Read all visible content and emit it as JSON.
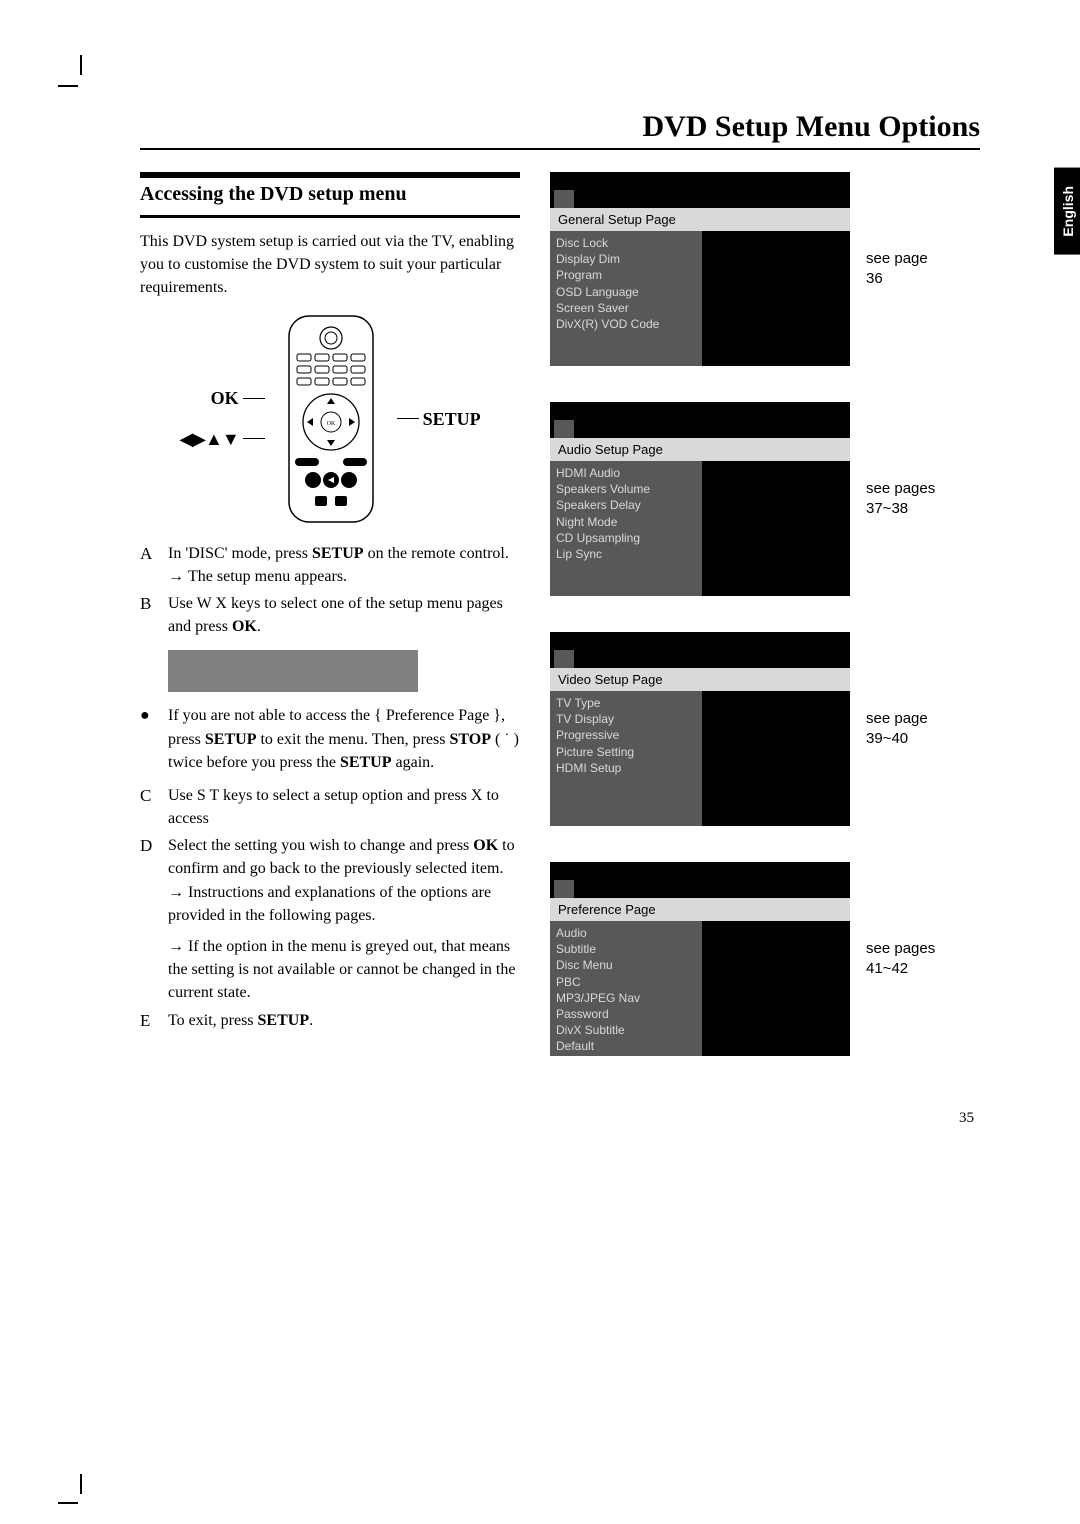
{
  "title": "DVD Setup Menu Options",
  "subtitle": "Accessing the DVD setup menu",
  "intro": "This DVD system setup is carried out via the TV, enabling you to customise the DVD system to suit your particular requirements.",
  "lang_tab": "English",
  "page_number": "35",
  "remote": {
    "ok": "OK",
    "setup": "SETUP",
    "arrows": "◀▶▲▼"
  },
  "steps": {
    "A": {
      "letter": "A",
      "text_pre": "In 'DISC' mode, press ",
      "bold1": "SETUP",
      "text_post": " on the remote control.",
      "sub": "The setup menu appears."
    },
    "B": {
      "letter": "B",
      "text_pre": "Use  W X keys to select one of the setup menu pages and press ",
      "bold1": "OK",
      "text_post": "."
    },
    "bullet": {
      "pre": "If you are not able to access the { Preference Page }, press ",
      "b1": "SETUP",
      "mid1": " to exit the menu.  Then, press ",
      "b2": "STOP",
      "mid2": " ( ˙    ) twice before you press the ",
      "b3": "SETUP",
      "post": " again."
    },
    "C": {
      "letter": "C",
      "text": "Use  S  T keys to select a setup option and press  X to access"
    },
    "D": {
      "letter": "D",
      "text_pre": "Select the setting you wish to change and press ",
      "bold1": "OK",
      "text_post": " to confirm and go back to the previously selected item.",
      "sub1": "Instructions and explanations of the options are provided in the following pages.",
      "sub2": "If the option in the menu is greyed out, that means the setting is not available or cannot be changed in the current state."
    },
    "E": {
      "letter": "E",
      "text_pre": "To exit, press ",
      "bold1": "SETUP",
      "text_post": "."
    }
  },
  "menus": [
    {
      "header": "General Setup Page",
      "caption": "see page 36",
      "items": [
        "Disc Lock",
        "Display Dim",
        "Program",
        "OSD Language",
        "Screen Saver",
        "DivX(R) VOD Code"
      ]
    },
    {
      "header": "Audio Setup Page",
      "caption": "see pages 37~38",
      "items": [
        "HDMI Audio",
        "Speakers Volume",
        "Speakers Delay",
        "Night Mode",
        "CD Upsampling",
        "Lip Sync"
      ]
    },
    {
      "header": "Video Setup Page",
      "caption": "see page 39~40",
      "items": [
        "TV Type",
        "TV Display",
        "Progressive",
        "Picture Setting",
        "HDMI Setup"
      ]
    },
    {
      "header": "Preference Page",
      "caption": "see pages 41~42",
      "items": [
        "Audio",
        "Subtitle",
        "Disc Menu",
        "PBC",
        "MP3/JPEG Nav",
        "Password",
        "DivX Subtitle",
        "Default"
      ]
    }
  ],
  "colors": {
    "black": "#000000",
    "grey": "#808080",
    "darkgrey": "#585858",
    "lightgrey": "#d9d9d9",
    "white": "#ffffff"
  }
}
